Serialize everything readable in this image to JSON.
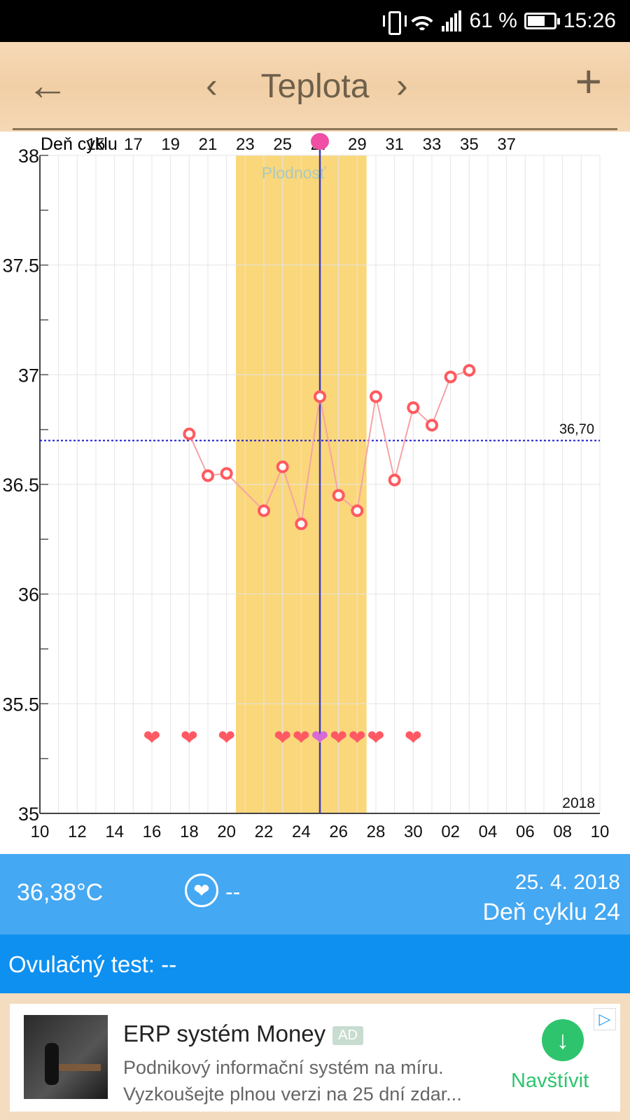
{
  "status_bar": {
    "battery": "61 %",
    "time": "15:26"
  },
  "header": {
    "title": "Teplota"
  },
  "chart_data": {
    "type": "line",
    "title": "",
    "xlabel": "",
    "ylabel": "",
    "cycle_label": "Deň cyklu",
    "cycle_ticks": [
      "15",
      "17",
      "19",
      "21",
      "23",
      "25",
      "27",
      "29",
      "31",
      "33",
      "35",
      "37"
    ],
    "date_ticks": [
      "10",
      "12",
      "14",
      "16",
      "18",
      "20",
      "22",
      "24",
      "26",
      "28",
      "30",
      "02",
      "04",
      "06",
      "08",
      "10"
    ],
    "y_ticks": [
      "38",
      "37.5",
      "37",
      "36.5",
      "36",
      "35.5",
      "35"
    ],
    "ylim": [
      35,
      38
    ],
    "year_label": "2018",
    "baseline": {
      "value": 36.7,
      "label": "36,70"
    },
    "fertile_window": {
      "start_cycle_day": 22.5,
      "end_cycle_day": 29.5,
      "label": "Plodnosť"
    },
    "ovulation_day": 27,
    "series": [
      {
        "points": [
          {
            "day": 20,
            "temp": 36.73
          },
          {
            "day": 21,
            "temp": 36.54
          },
          {
            "day": 22,
            "temp": 36.55
          },
          {
            "day": 24,
            "temp": 36.38
          },
          {
            "day": 25,
            "temp": 36.58
          },
          {
            "day": 26,
            "temp": 36.32
          },
          {
            "day": 27,
            "temp": 36.9
          },
          {
            "day": 28,
            "temp": 36.45
          },
          {
            "day": 29,
            "temp": 36.38
          },
          {
            "day": 30,
            "temp": 36.9
          },
          {
            "day": 31,
            "temp": 36.52
          },
          {
            "day": 32,
            "temp": 36.85
          },
          {
            "day": 33,
            "temp": 36.77
          },
          {
            "day": 34,
            "temp": 36.99
          },
          {
            "day": 35,
            "temp": 37.02
          }
        ]
      }
    ],
    "intercourse_days": [
      18,
      20,
      22,
      25,
      26,
      27,
      28,
      29,
      30,
      32
    ]
  },
  "summary": {
    "temperature": "36,38°C",
    "intercourse": "--",
    "date": "25. 4. 2018",
    "cycle_day": "Deň cyklu 24"
  },
  "ovulation_test": {
    "label": "Ovulačný test: --"
  },
  "ad": {
    "title": "ERP systém Money",
    "badge": "AD",
    "line1": "Podnikový informační systém na míru.",
    "line2": "Vyzkoušejte plnou verzi na 25 dní zdar...",
    "cta": "Navštívit"
  },
  "colors": {
    "series": "#ff5a5f",
    "line": "#f5a3a6",
    "fertile": "#fad77a",
    "ovulation": "#3a3ab8",
    "baseline": "#1a1ad0",
    "info1": "#45a8f3",
    "info2": "#0e90f0"
  }
}
